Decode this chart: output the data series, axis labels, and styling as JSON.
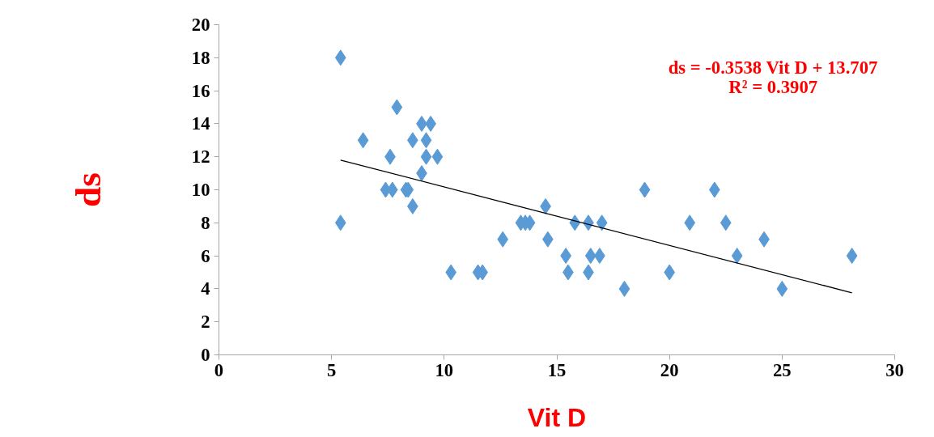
{
  "chart_data": {
    "type": "scatter",
    "xlabel": "Vit D",
    "ylabel": "ds",
    "grid": false,
    "xlim": [
      0,
      30
    ],
    "xticks": [
      0,
      5,
      10,
      15,
      20,
      25,
      30
    ],
    "ylim": [
      0,
      20
    ],
    "yticks": [
      0,
      2,
      4,
      6,
      8,
      10,
      12,
      14,
      16,
      18,
      20
    ],
    "annotations": [
      "ds = -0.3538 Vit D + 13.707\nR² = 0.3907"
    ],
    "series": [
      {
        "marker": "diamond",
        "color": "#5b9bd5",
        "x": [
          5.4,
          5.4,
          6.4,
          7.6,
          7.4,
          7.7,
          7.9,
          8.3,
          8.4,
          8.6,
          8.6,
          9.0,
          9.4,
          9.0,
          9.2,
          9.2,
          9.7,
          10.3,
          11.5,
          11.7,
          12.6,
          13.4,
          13.6,
          13.8,
          14.5,
          14.6,
          15.4,
          15.5,
          15.8,
          16.4,
          16.4,
          16.5,
          16.9,
          17.0,
          18.0,
          18.9,
          20.0,
          20.9,
          22.0,
          22.5,
          23.0,
          24.2,
          25.0,
          28.1
        ],
        "values": [
          18,
          8,
          13,
          12,
          10,
          10,
          15,
          10,
          10,
          9,
          13,
          14,
          14,
          11,
          13,
          12,
          12,
          5,
          5,
          5,
          7,
          8,
          8,
          8,
          9,
          7,
          6,
          5,
          8,
          8,
          5,
          6,
          6,
          8,
          4,
          10,
          5,
          8,
          10,
          8,
          6,
          7,
          4,
          6
        ]
      },
      {
        "type": "line",
        "color": "#000000",
        "x": [
          5.4,
          28.1
        ],
        "values": [
          11.8,
          3.76
        ]
      }
    ]
  }
}
